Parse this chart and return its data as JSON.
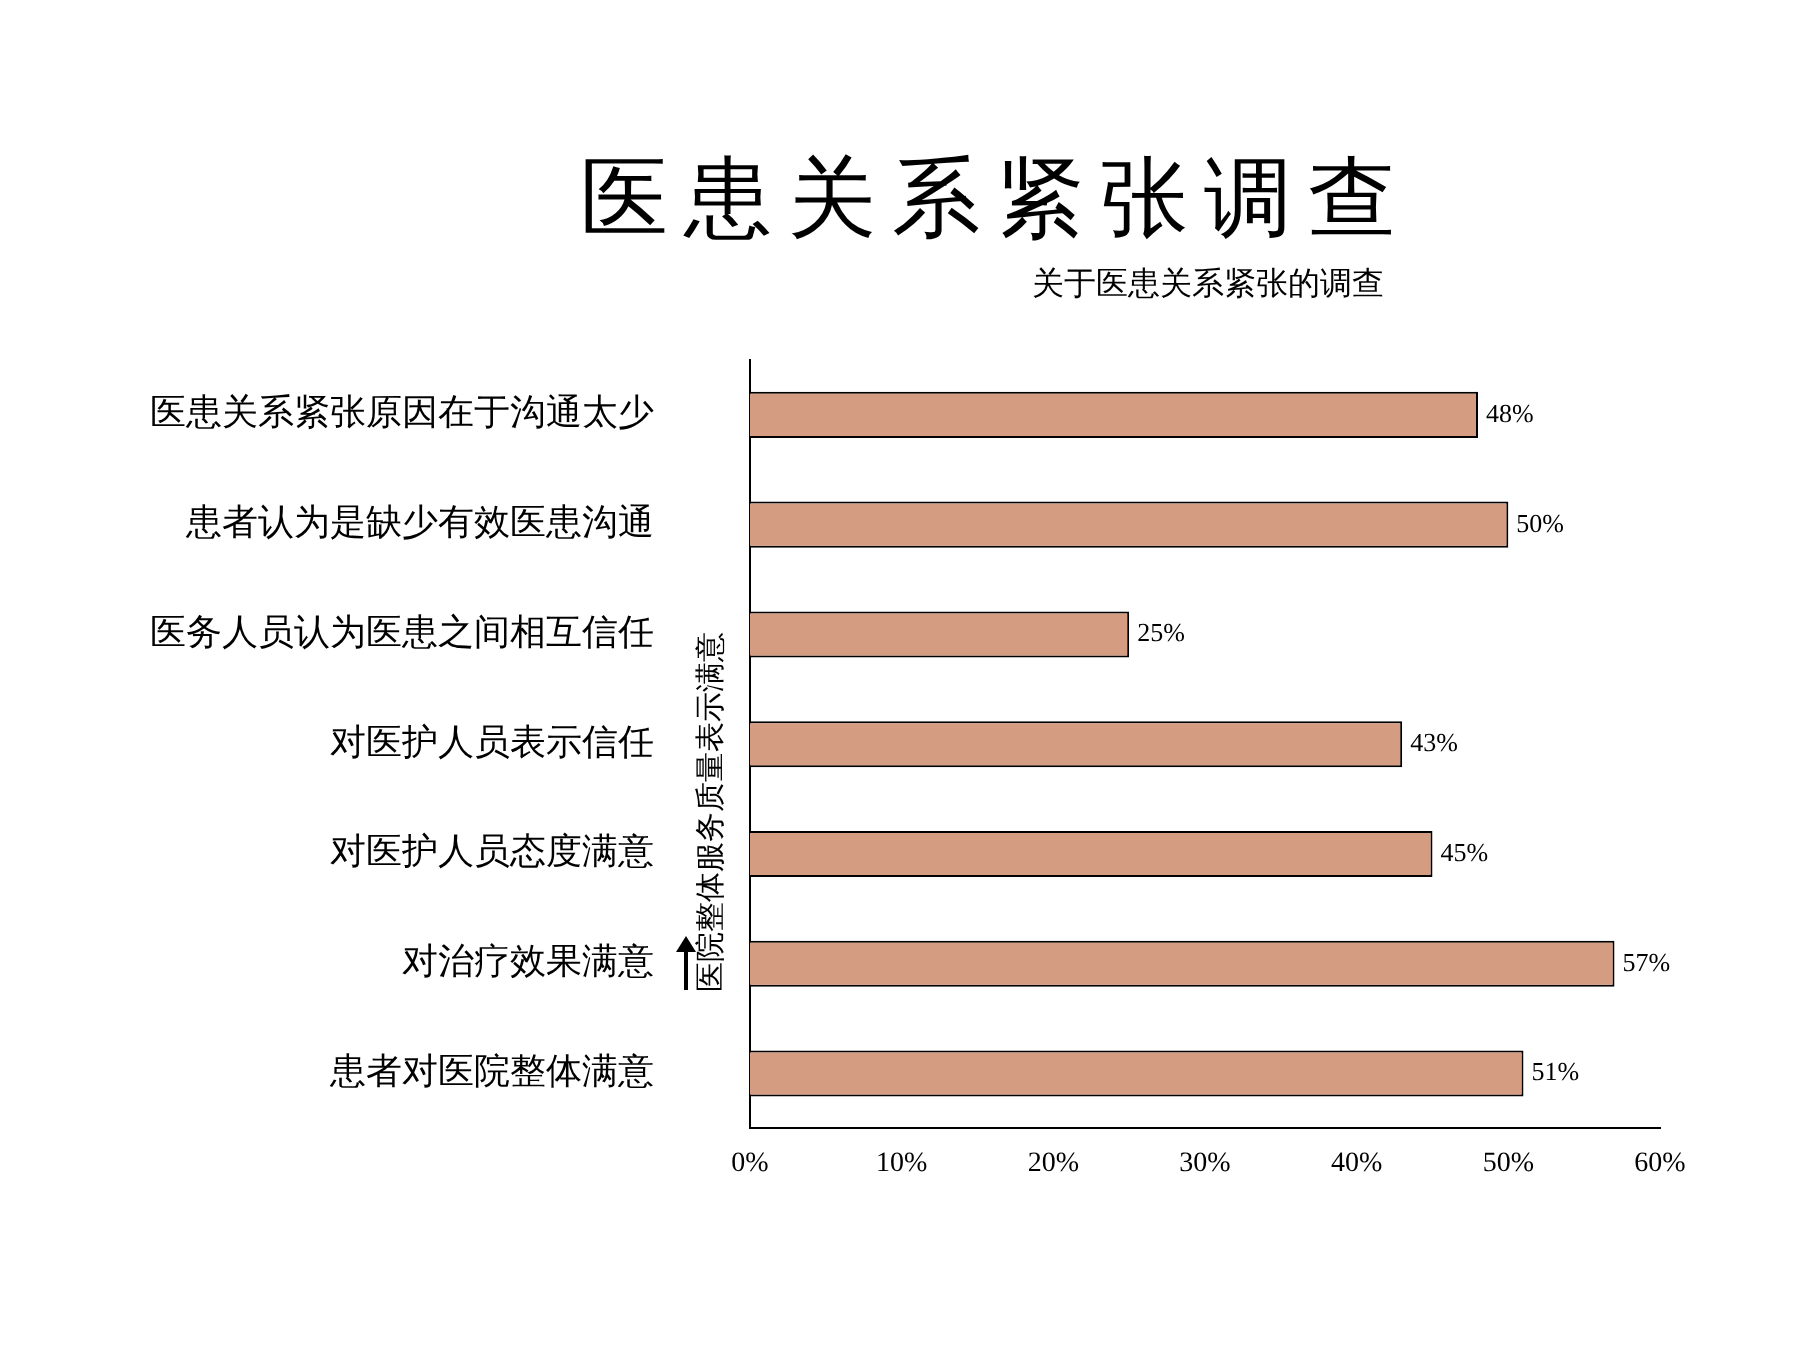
{
  "chart_data": {
    "type": "bar",
    "orientation": "horizontal",
    "title": "医患关系紧张调查",
    "subtitle": "关于医患关系紧张的调查",
    "ylabel": "医院整体服务质量表示满意",
    "categories": [
      "医患关系紧张原因在于沟通太少",
      "患者认为是缺少有效医患沟通",
      "医务人员认为医患之间相互信任",
      "对医护人员表示信任",
      "对医护人员态度满意",
      "对治疗效果满意",
      "患者对医院整体满意"
    ],
    "values": [
      48,
      50,
      25,
      43,
      45,
      57,
      51
    ],
    "value_labels": [
      "48%",
      "50%",
      "25%",
      "43%",
      "45%",
      "57%",
      "51%"
    ],
    "color": "#d49c80",
    "xlim": [
      0,
      60
    ],
    "xticks": [
      {
        "value": 0,
        "label": "0%"
      },
      {
        "value": 10,
        "label": "10%"
      },
      {
        "value": 20,
        "label": "20%"
      },
      {
        "value": 30,
        "label": "30%"
      },
      {
        "value": 40,
        "label": "40%"
      },
      {
        "value": 50,
        "label": "50%"
      },
      {
        "value": 60,
        "label": "60%"
      }
    ],
    "grid": false,
    "legend": false
  }
}
